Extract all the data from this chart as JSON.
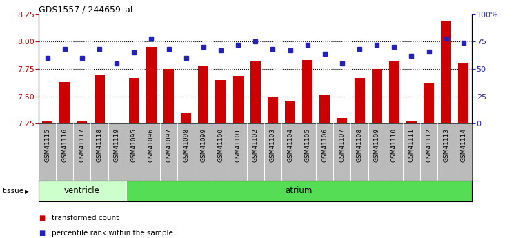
{
  "title": "GDS1557 / 244659_at",
  "samples": [
    "GSM41115",
    "GSM41116",
    "GSM41117",
    "GSM41118",
    "GSM41119",
    "GSM41095",
    "GSM41096",
    "GSM41097",
    "GSM41098",
    "GSM41099",
    "GSM41100",
    "GSM41101",
    "GSM41102",
    "GSM41103",
    "GSM41104",
    "GSM41105",
    "GSM41106",
    "GSM41107",
    "GSM41108",
    "GSM41109",
    "GSM41110",
    "GSM41111",
    "GSM41112",
    "GSM41113",
    "GSM41114"
  ],
  "transformed_count": [
    7.28,
    7.63,
    7.28,
    7.7,
    7.24,
    7.67,
    7.95,
    7.75,
    7.35,
    7.78,
    7.65,
    7.69,
    7.82,
    7.49,
    7.46,
    7.83,
    7.51,
    7.3,
    7.67,
    7.75,
    7.82,
    7.27,
    7.62,
    8.19,
    7.8
  ],
  "percentile_rank": [
    60,
    68,
    60,
    68,
    55,
    65,
    78,
    68,
    60,
    70,
    67,
    72,
    75,
    68,
    67,
    72,
    64,
    55,
    68,
    72,
    70,
    62,
    66,
    78,
    74
  ],
  "ventricle_count": 5,
  "ylim_left": [
    7.25,
    8.25
  ],
  "ylim_right": [
    0,
    100
  ],
  "bar_color": "#cc0000",
  "dot_color": "#2222bb",
  "yticks_left": [
    7.25,
    7.5,
    7.75,
    8.0,
    8.25
  ],
  "yticks_right": [
    0,
    25,
    50,
    75,
    100
  ],
  "grid_dotted_at": [
    7.5,
    7.75,
    8.0
  ],
  "ventricle_color": "#ccffcc",
  "atrium_color": "#55dd55",
  "xtick_bg": "#bbbbbb",
  "legend_items": [
    {
      "label": "transformed count",
      "color": "#cc0000"
    },
    {
      "label": "percentile rank within the sample",
      "color": "#2222bb"
    }
  ]
}
